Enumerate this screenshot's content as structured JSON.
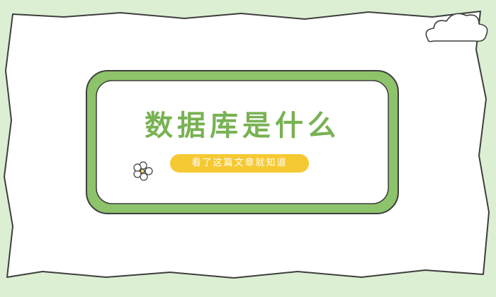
{
  "title": "数据库是什么",
  "subtitle": "看了这篇文章就知道",
  "colors": {
    "background": "#dcefd3",
    "paper": "#ffffff",
    "frame": "#8dc36a",
    "title": "#78b253",
    "tag": "#f6c932"
  },
  "icons": {
    "cloud": "cloud-icon",
    "flower": "flower-icon"
  }
}
